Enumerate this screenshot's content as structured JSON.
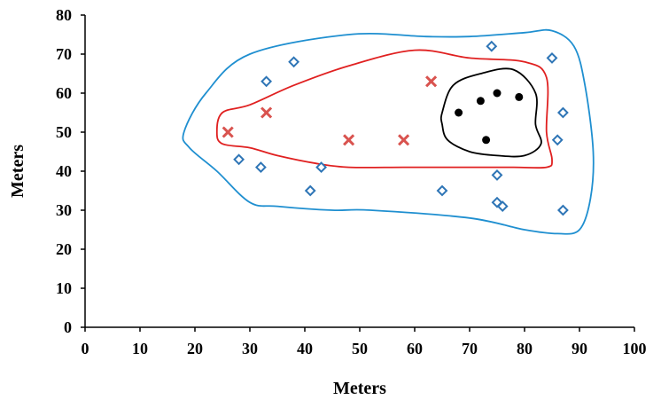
{
  "chart_data": {
    "type": "scatter",
    "title": "",
    "xlabel": "Meters",
    "ylabel": "Meters",
    "xlim": [
      0,
      100
    ],
    "ylim": [
      0,
      80
    ],
    "x_ticks": [
      "0",
      "10",
      "20",
      "30",
      "40",
      "50",
      "60",
      "70",
      "80",
      "90",
      "100"
    ],
    "y_ticks": [
      "0",
      "10",
      "20",
      "30",
      "40",
      "50",
      "60",
      "70",
      "80"
    ],
    "grid": false,
    "legend": "none",
    "series": [
      {
        "marker": "diamond",
        "color": "#2e75b6",
        "points": [
          [
            28,
            43
          ],
          [
            32,
            41
          ],
          [
            33,
            63
          ],
          [
            38,
            68
          ],
          [
            41,
            35
          ],
          [
            43,
            41
          ],
          [
            65,
            35
          ],
          [
            74,
            72
          ],
          [
            75,
            39
          ],
          [
            75,
            32
          ],
          [
            76,
            31
          ],
          [
            85,
            69
          ],
          [
            86,
            48
          ],
          [
            87,
            55
          ],
          [
            87,
            30
          ]
        ]
      },
      {
        "marker": "x",
        "color": "#d9534f",
        "points": [
          [
            26,
            50
          ],
          [
            33,
            55
          ],
          [
            48,
            48
          ],
          [
            58,
            48
          ],
          [
            63,
            63
          ]
        ]
      },
      {
        "marker": "circle",
        "color": "#000000",
        "points": [
          [
            68,
            55
          ],
          [
            72,
            58
          ],
          [
            73,
            48
          ],
          [
            75,
            60
          ],
          [
            79,
            59
          ]
        ]
      }
    ],
    "contours": [
      {
        "color": "#1f8fd0",
        "points": [
          [
            18,
            50
          ],
          [
            22,
            60
          ],
          [
            30,
            70
          ],
          [
            48,
            75
          ],
          [
            62,
            74.5
          ],
          [
            70,
            74.5
          ],
          [
            80,
            75.5
          ],
          [
            85,
            76
          ],
          [
            89,
            72
          ],
          [
            91,
            62
          ],
          [
            92.5,
            45
          ],
          [
            92,
            33
          ],
          [
            90,
            25
          ],
          [
            86,
            24
          ],
          [
            80,
            25
          ],
          [
            70,
            28
          ],
          [
            52,
            30
          ],
          [
            45,
            30
          ],
          [
            35,
            31
          ],
          [
            30,
            32
          ],
          [
            24,
            40
          ],
          [
            19,
            46
          ]
        ]
      },
      {
        "color": "#e02020",
        "points": [
          [
            24,
            50
          ],
          [
            25,
            55
          ],
          [
            30,
            57
          ],
          [
            38,
            62
          ],
          [
            48,
            67
          ],
          [
            60,
            71
          ],
          [
            70,
            69
          ],
          [
            80,
            68
          ],
          [
            84,
            64
          ],
          [
            84,
            50
          ],
          [
            85,
            43
          ],
          [
            84,
            41
          ],
          [
            78,
            41
          ],
          [
            68,
            41
          ],
          [
            58,
            41
          ],
          [
            48,
            41
          ],
          [
            42,
            42
          ],
          [
            35,
            44
          ],
          [
            30,
            46
          ],
          [
            25,
            47
          ]
        ]
      },
      {
        "color": "#000000",
        "points": [
          [
            65,
            55
          ],
          [
            67,
            62
          ],
          [
            72,
            65
          ],
          [
            78,
            66
          ],
          [
            82,
            60
          ],
          [
            82,
            52
          ],
          [
            83,
            47
          ],
          [
            80,
            44
          ],
          [
            75,
            44
          ],
          [
            70,
            45
          ],
          [
            66,
            48
          ],
          [
            65,
            52
          ]
        ]
      }
    ]
  }
}
